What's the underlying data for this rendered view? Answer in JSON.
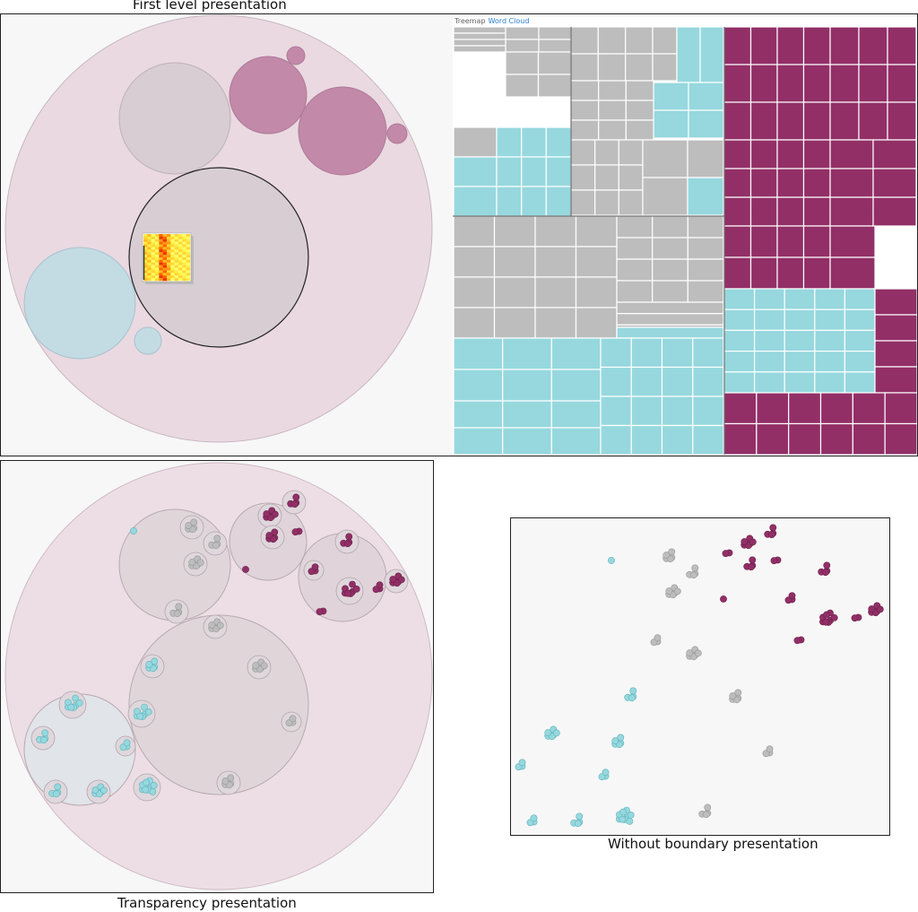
{
  "captions": {
    "first_level": "First level presentation",
    "transparency": "Transparency presentation",
    "without_boundary": "Without boundary presentation"
  },
  "treemap_tabs": {
    "treemap": "Treemap",
    "word_cloud": "Word Cloud"
  },
  "colors": {
    "gray_cluster": "#bdbdbd",
    "cyan_cluster": "#96d8de",
    "magenta_cluster": "#922f67",
    "outer_circle_fill": "#ead9e1",
    "gray_circle_fill": "#d8cdd3",
    "magenta_circle_fill": "#c289a9",
    "blue_circle_fill": "#c3dbe3",
    "tab_link": "#2a7fd4"
  }
}
